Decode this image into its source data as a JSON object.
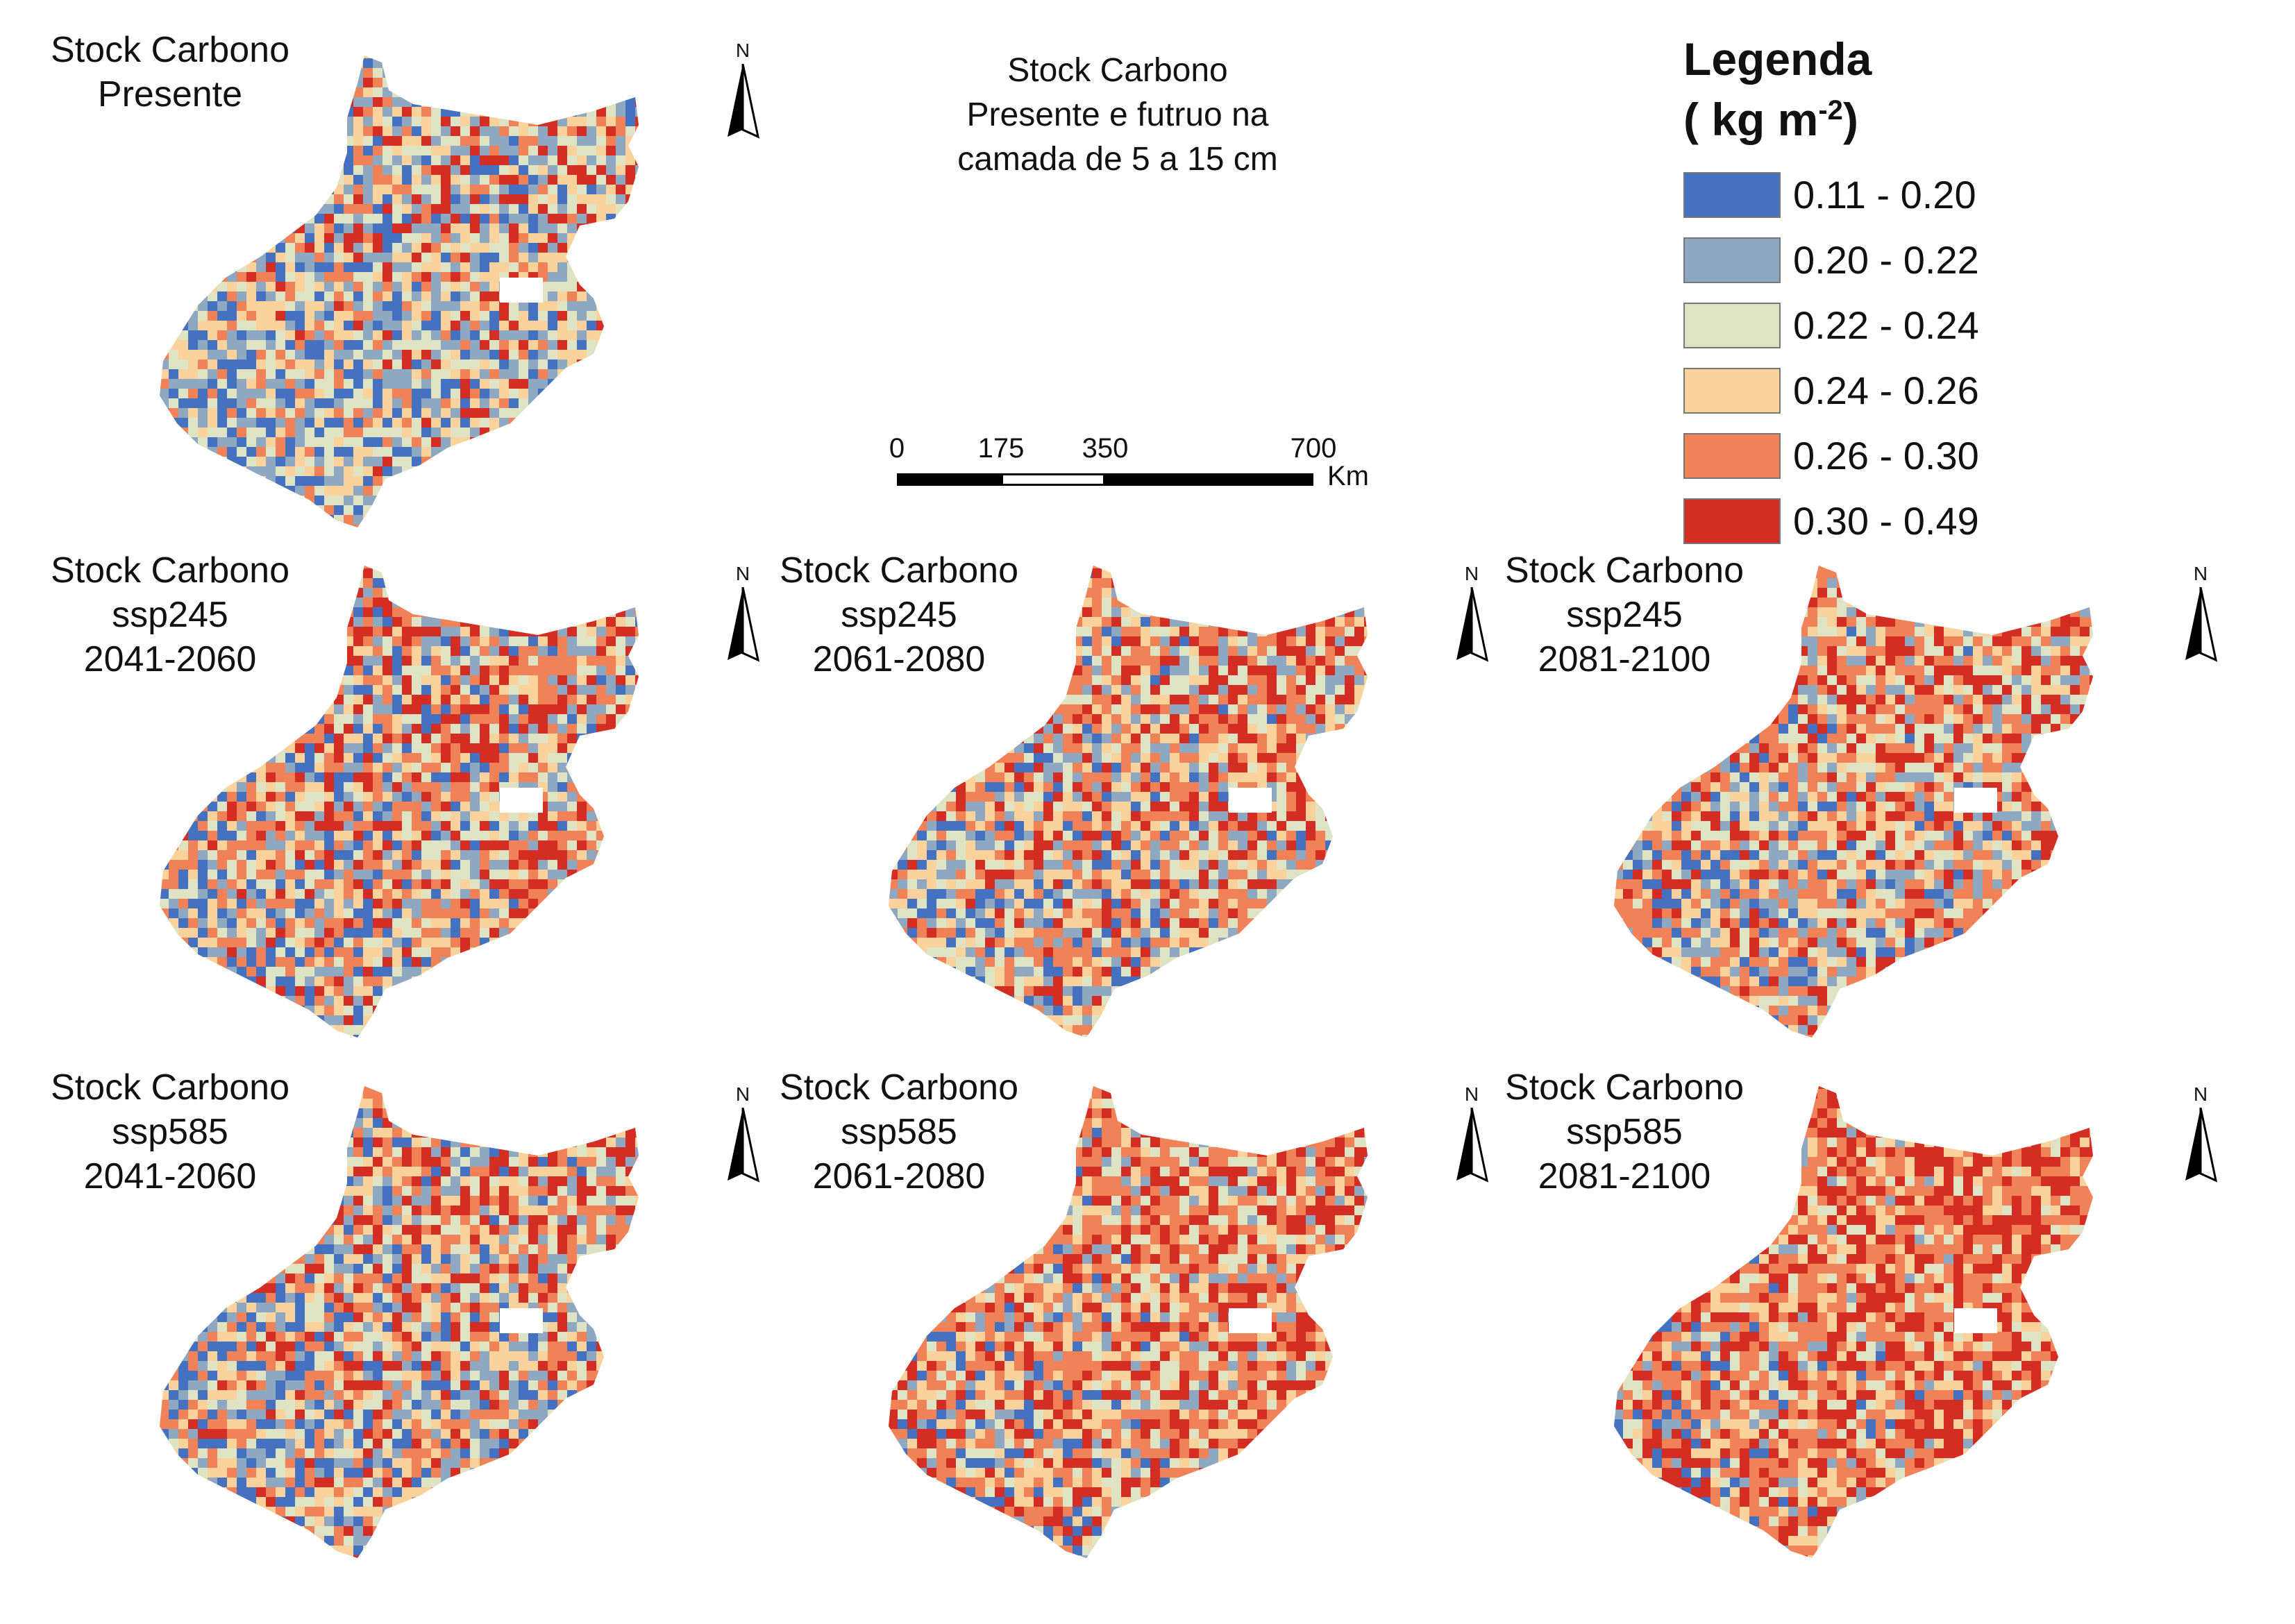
{
  "main_title": [
    "Stock Carbono",
    "Presente e futruo na",
    "camada de  5 a 15 cm"
  ],
  "legend": {
    "title": "Legenda",
    "unit_prefix": "( kg m",
    "unit_exp": "-2",
    "unit_suffix": ")",
    "classes": [
      {
        "label": "0.11 - 0.20",
        "color": "#4472c0"
      },
      {
        "label": "0.20 - 0.22",
        "color": "#8fa8c2"
      },
      {
        "label": "0.22 - 0.24",
        "color": "#dde3c3"
      },
      {
        "label": "0.24 - 0.26",
        "color": "#fbd19c"
      },
      {
        "label": "0.26 - 0.30",
        "color": "#f18257"
      },
      {
        "label": "0.30 - 0.49",
        "color": "#d42e24"
      }
    ]
  },
  "scale_bar": {
    "ticks": [
      "0",
      "175",
      "350",
      "700"
    ],
    "unit": "Km"
  },
  "north_label": "N",
  "panels": [
    {
      "lines": [
        "Stock Carbono",
        "Presente"
      ],
      "mix": [
        0.16,
        0.2,
        0.22,
        0.2,
        0.13,
        0.09
      ]
    },
    {
      "lines": [
        "Stock Carbono",
        "ssp245",
        "2041-2060"
      ],
      "mix": [
        0.14,
        0.16,
        0.14,
        0.16,
        0.24,
        0.16
      ]
    },
    {
      "lines": [
        "Stock Carbono",
        "ssp245",
        "2061-2080"
      ],
      "mix": [
        0.1,
        0.14,
        0.16,
        0.18,
        0.24,
        0.18
      ]
    },
    {
      "lines": [
        "Stock Carbono",
        "ssp245",
        "2081-2100"
      ],
      "mix": [
        0.09,
        0.14,
        0.16,
        0.18,
        0.25,
        0.18
      ]
    },
    {
      "lines": [
        "Stock Carbono",
        "ssp585",
        "2041-2060"
      ],
      "mix": [
        0.14,
        0.16,
        0.15,
        0.17,
        0.22,
        0.16
      ]
    },
    {
      "lines": [
        "Stock Carbono",
        "ssp585",
        "2061-2080"
      ],
      "mix": [
        0.05,
        0.09,
        0.14,
        0.17,
        0.3,
        0.25
      ]
    },
    {
      "lines": [
        "Stock Carbono",
        "ssp585",
        "2081-2100"
      ],
      "mix": [
        0.02,
        0.06,
        0.12,
        0.17,
        0.33,
        0.3
      ]
    }
  ]
}
